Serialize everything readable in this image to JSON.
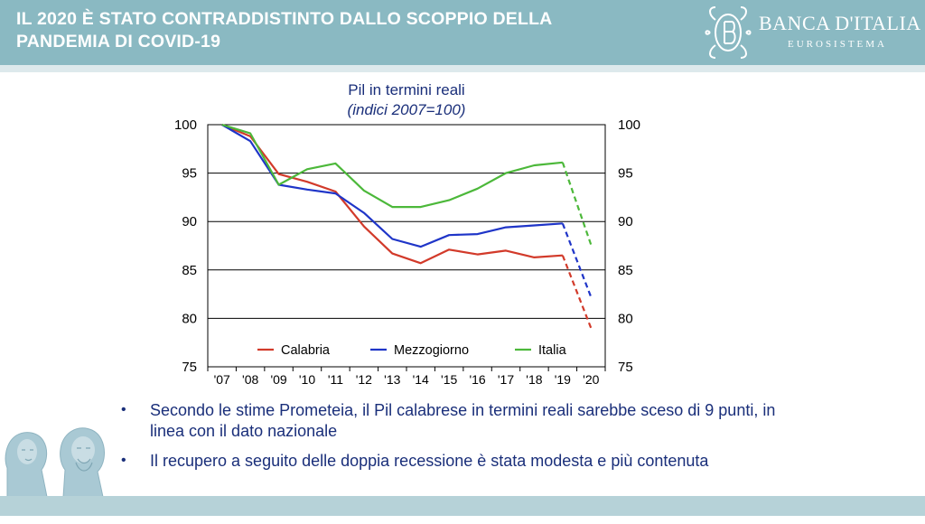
{
  "header": {
    "title_line1": "IL 2020 È STATO CONTRADDISTINTO DALLO SCOPPIO DELLA",
    "title_line2": "PANDEMIA DI COVID-19",
    "bank_name": "BANCA D'ITALIA",
    "bank_subtitle": "EUROSISTEMA",
    "logo_icon": "banca-italia-emblem-icon"
  },
  "colors": {
    "header_bg": "#8ab9c2",
    "calabria": "#d23a2a",
    "mezzogiorno": "#1f35c8",
    "italia": "#4cb83a",
    "text": "#1a2f7a"
  },
  "chart_data": {
    "type": "line",
    "title": "Pil in termini reali",
    "subtitle": "(indici 2007=100)",
    "categories": [
      "'07",
      "'08",
      "'09",
      "'10",
      "'11",
      "'12",
      "'13",
      "'14",
      "'15",
      "'16",
      "'17",
      "'18",
      "'19",
      "'20"
    ],
    "ylim": [
      75,
      100
    ],
    "yticks": [
      75,
      80,
      85,
      90,
      95,
      100
    ],
    "ytick_labels": [
      "75",
      "80",
      "85",
      "90",
      "95",
      "100"
    ],
    "grid": true,
    "legend_position": "bottom-inside",
    "dashed_last_segment": true,
    "series": [
      {
        "name": "Calabria",
        "color": "#d23a2a",
        "values": [
          100,
          98.8,
          94.9,
          94.1,
          93.1,
          89.5,
          86.7,
          85.7,
          87.1,
          86.6,
          87.0,
          86.3,
          86.5,
          79.0
        ]
      },
      {
        "name": "Mezzogiorno",
        "color": "#1f35c8",
        "values": [
          100,
          98.3,
          93.8,
          93.3,
          92.9,
          90.9,
          88.2,
          87.4,
          88.6,
          88.7,
          89.4,
          89.6,
          89.8,
          82.2
        ]
      },
      {
        "name": "Italia",
        "color": "#4cb83a",
        "values": [
          100,
          99.1,
          93.8,
          95.4,
          96.0,
          93.2,
          91.5,
          91.5,
          92.2,
          93.4,
          95.0,
          95.8,
          96.1,
          87.6
        ]
      }
    ]
  },
  "bullets": [
    {
      "text_line1": "Secondo le stime Prometeia, il Pil calabrese in termini reali sarebbe sceso di 9 punti, in",
      "text_line2": "linea con il dato nazionale"
    },
    {
      "text_line1": "Il recupero a seguito delle doppia recessione è stata modesta e più contenuta"
    }
  ],
  "decoration": {
    "statues_icon": "riace-bronzes-icon"
  }
}
